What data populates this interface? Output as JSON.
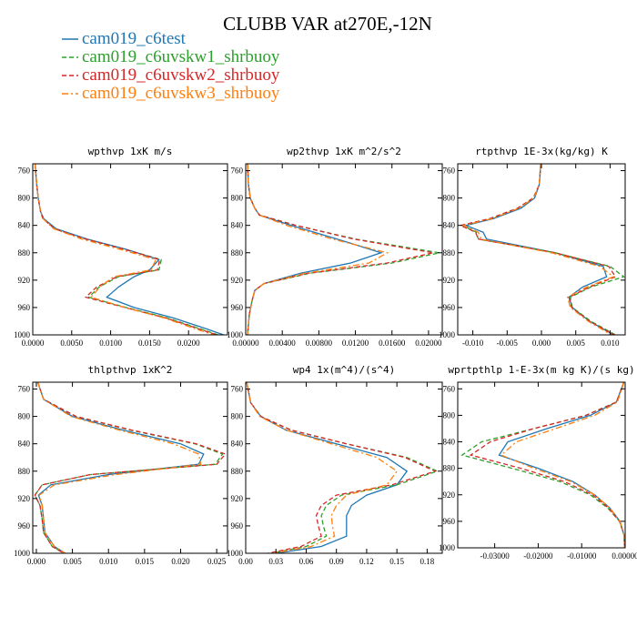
{
  "figure": {
    "title": "CLUBB VAR at270E,-12N",
    "legend": [
      {
        "label": "cam019_c6test",
        "color": "#1f77b4",
        "dash": "solid"
      },
      {
        "label": "cam019_c6uvskw1_shrbuoy",
        "color": "#2ca02c",
        "dash": "dashed"
      },
      {
        "label": "cam019_c6uvskw2_shrbuoy",
        "color": "#d62728",
        "dash": "dashed"
      },
      {
        "label": "cam019_c6uvskw3_shrbuoy",
        "color": "#ff7f0e",
        "dash": "dashdot"
      }
    ]
  },
  "chart_data": [
    {
      "type": "line",
      "title": "wpthvp  1xK m/s",
      "xlim": [
        0,
        0.025
      ],
      "ylim": [
        1000,
        750
      ],
      "xticks": [
        0,
        0.005,
        0.01,
        0.015,
        0.02
      ],
      "xtick_labels": [
        "0.0000",
        "0.0050",
        "0.0100",
        "0.0150",
        "0.0200"
      ],
      "yticks": [
        760,
        800,
        840,
        880,
        920,
        960,
        1000
      ],
      "y": [
        750,
        780,
        800,
        820,
        830,
        845,
        860,
        875,
        890,
        905,
        915,
        930,
        945,
        960,
        975,
        990,
        1000
      ],
      "series": [
        {
          "name": "cam019_c6test",
          "x": [
            0.0003,
            0.0005,
            0.0007,
            0.001,
            0.0014,
            0.003,
            0.007,
            0.012,
            0.0162,
            0.015,
            0.013,
            0.011,
            0.0095,
            0.013,
            0.018,
            0.022,
            0.0245
          ]
        },
        {
          "name": "cam019_c6uvskw1_shrbuoy",
          "x": [
            0.0003,
            0.0005,
            0.0007,
            0.001,
            0.0013,
            0.0028,
            0.0068,
            0.0118,
            0.0165,
            0.0162,
            0.011,
            0.0085,
            0.0072,
            0.012,
            0.0172,
            0.0212,
            0.0238
          ]
        },
        {
          "name": "cam019_c6uvskw2_shrbuoy",
          "x": [
            0.0003,
            0.0005,
            0.0007,
            0.001,
            0.0013,
            0.0028,
            0.0068,
            0.0118,
            0.0163,
            0.016,
            0.0108,
            0.0082,
            0.0068,
            0.0118,
            0.017,
            0.021,
            0.0236
          ]
        },
        {
          "name": "cam019_c6uvskw3_shrbuoy",
          "x": [
            0.0003,
            0.0005,
            0.0007,
            0.001,
            0.0013,
            0.0027,
            0.0063,
            0.0112,
            0.0158,
            0.0152,
            0.0104,
            0.0086,
            0.0075,
            0.0118,
            0.0168,
            0.0206,
            0.0232
          ]
        }
      ]
    },
    {
      "type": "line",
      "title": "wp2thvp  1xK m^2/s^2",
      "xlim": [
        0,
        0.0215
      ],
      "ylim": [
        1000,
        750
      ],
      "xticks": [
        0,
        0.004,
        0.008,
        0.012,
        0.016,
        0.02
      ],
      "xtick_labels": [
        "0.00000",
        "0.00400",
        "0.00800",
        "0.01200",
        "0.01600",
        "0.02000"
      ],
      "yticks": [
        760,
        800,
        840,
        880,
        920,
        960,
        1000
      ],
      "y": [
        750,
        780,
        800,
        815,
        825,
        840,
        860,
        880,
        895,
        910,
        925,
        935,
        950,
        970,
        1000
      ],
      "series": [
        {
          "name": "cam019_c6test",
          "x": [
            0.0002,
            0.0003,
            0.0005,
            0.001,
            0.0015,
            0.005,
            0.01,
            0.0148,
            0.0115,
            0.006,
            0.002,
            0.001,
            0.0007,
            0.0004,
            0.0002
          ]
        },
        {
          "name": "cam019_c6uvskw1_shrbuoy",
          "x": [
            0.0002,
            0.0003,
            0.0005,
            0.001,
            0.0015,
            0.0055,
            0.012,
            0.0212,
            0.016,
            0.007,
            0.002,
            0.001,
            0.0007,
            0.0004,
            0.0002
          ]
        },
        {
          "name": "cam019_c6uvskw2_shrbuoy",
          "x": [
            0.0002,
            0.0003,
            0.0005,
            0.001,
            0.0015,
            0.0055,
            0.0118,
            0.0205,
            0.0155,
            0.0068,
            0.002,
            0.001,
            0.0007,
            0.0004,
            0.0002
          ]
        },
        {
          "name": "cam019_c6uvskw3_shrbuoy",
          "x": [
            0.0002,
            0.0003,
            0.0005,
            0.001,
            0.0015,
            0.0045,
            0.0095,
            0.0155,
            0.0135,
            0.0065,
            0.002,
            0.001,
            0.0007,
            0.0004,
            0.0002
          ]
        }
      ]
    },
    {
      "type": "line",
      "title": "rtpthvp  1E-3x(kg/kg) K",
      "xlim": [
        -0.0122,
        0.0122
      ],
      "ylim": [
        1000,
        750
      ],
      "xticks": [
        -0.01,
        -0.005,
        0,
        0.005,
        0.01
      ],
      "xtick_labels": [
        "-0.010",
        "-0.005",
        "0.000",
        "0.005",
        "0.010"
      ],
      "yticks": [
        760,
        800,
        840,
        880,
        920,
        960,
        1000
      ],
      "y": [
        750,
        780,
        800,
        815,
        830,
        840,
        850,
        860,
        880,
        900,
        915,
        930,
        945,
        960,
        980,
        1000
      ],
      "series": [
        {
          "name": "cam019_c6test",
          "x": [
            -0.0001,
            -0.0003,
            -0.001,
            -0.003,
            -0.007,
            -0.011,
            -0.0085,
            -0.008,
            0.002,
            0.009,
            0.0095,
            0.006,
            0.004,
            0.0045,
            0.007,
            0.0105
          ]
        },
        {
          "name": "cam019_c6uvskw1_shrbuoy",
          "x": [
            -0.0001,
            -0.0003,
            -0.0012,
            -0.0035,
            -0.0075,
            -0.0115,
            -0.0095,
            -0.0092,
            0.002,
            0.01,
            0.012,
            0.0072,
            0.0042,
            0.0045,
            0.0072,
            0.0108
          ]
        },
        {
          "name": "cam019_c6uvskw2_shrbuoy",
          "x": [
            -0.0001,
            -0.0003,
            -0.0012,
            -0.0035,
            -0.0075,
            -0.0118,
            -0.0096,
            -0.0092,
            0.002,
            0.0098,
            0.0108,
            0.007,
            0.004,
            0.0044,
            0.007,
            0.0106
          ]
        },
        {
          "name": "cam019_c6uvskw3_shrbuoy",
          "x": [
            -0.0001,
            -0.0003,
            -0.0011,
            -0.0033,
            -0.0072,
            -0.0113,
            -0.0092,
            -0.0088,
            0.0015,
            0.0085,
            0.0105,
            0.0066,
            0.0038,
            0.0042,
            0.0068,
            0.0102
          ]
        }
      ]
    },
    {
      "type": "line",
      "title": "thlpthvp  1xK^2",
      "xlim": [
        -0.0005,
        0.0265
      ],
      "ylim": [
        1000,
        750
      ],
      "xticks": [
        0,
        0.005,
        0.01,
        0.015,
        0.02,
        0.025
      ],
      "xtick_labels": [
        "0.000",
        "0.005",
        "0.010",
        "0.015",
        "0.020",
        "0.025"
      ],
      "yticks": [
        760,
        800,
        840,
        880,
        920,
        960,
        1000
      ],
      "y": [
        750,
        775,
        800,
        820,
        840,
        855,
        870,
        885,
        900,
        915,
        930,
        950,
        970,
        990,
        1000
      ],
      "series": [
        {
          "name": "cam019_c6test",
          "x": [
            0.0002,
            0.001,
            0.005,
            0.012,
            0.02,
            0.0232,
            0.0225,
            0.01,
            0.002,
            0.0003,
            0.0008,
            0.001,
            0.0012,
            0.0025,
            0.004
          ]
        },
        {
          "name": "cam019_c6uvskw1_shrbuoy",
          "x": [
            0.0002,
            0.001,
            0.0055,
            0.013,
            0.022,
            0.0258,
            0.0248,
            0.0075,
            0.0008,
            -0.0002,
            0.0005,
            0.0008,
            0.001,
            0.0022,
            0.0038
          ]
        },
        {
          "name": "cam019_c6uvskw2_shrbuoy",
          "x": [
            0.0002,
            0.001,
            0.0055,
            0.0132,
            0.0222,
            0.0262,
            0.025,
            0.0075,
            0.0008,
            -0.0002,
            0.0005,
            0.0008,
            0.001,
            0.0022,
            0.0038
          ]
        },
        {
          "name": "cam019_c6uvskw3_shrbuoy",
          "x": [
            0.0002,
            0.001,
            0.0048,
            0.0115,
            0.019,
            0.0225,
            0.0228,
            0.011,
            0.0025,
            0.0004,
            0.0008,
            0.001,
            0.0012,
            0.0025,
            0.004
          ]
        }
      ]
    },
    {
      "type": "line",
      "title": "wp4  1x(m^4)/(s^4)",
      "xlim": [
        0,
        0.195
      ],
      "ylim": [
        1000,
        750
      ],
      "xticks": [
        0,
        0.03,
        0.06,
        0.09,
        0.12,
        0.15,
        0.18
      ],
      "xtick_labels": [
        "0.00",
        "0.03",
        "0.06",
        "0.09",
        "0.12",
        "0.15",
        "0.18"
      ],
      "yticks": [
        760,
        800,
        840,
        880,
        920,
        960,
        1000
      ],
      "y": [
        750,
        780,
        800,
        820,
        840,
        860,
        880,
        900,
        915,
        930,
        945,
        960,
        975,
        990,
        1000
      ],
      "series": [
        {
          "name": "cam019_c6test",
          "x": [
            0.001,
            0.005,
            0.015,
            0.04,
            0.09,
            0.14,
            0.16,
            0.15,
            0.12,
            0.105,
            0.1,
            0.1,
            0.1,
            0.075,
            0.03
          ]
        },
        {
          "name": "cam019_c6uvskw1_shrbuoy",
          "x": [
            0.001,
            0.005,
            0.015,
            0.045,
            0.1,
            0.16,
            0.19,
            0.15,
            0.095,
            0.08,
            0.075,
            0.077,
            0.08,
            0.06,
            0.025
          ]
        },
        {
          "name": "cam019_c6uvskw2_shrbuoy",
          "x": [
            0.001,
            0.005,
            0.015,
            0.045,
            0.1,
            0.158,
            0.188,
            0.145,
            0.09,
            0.075,
            0.07,
            0.072,
            0.075,
            0.055,
            0.022
          ]
        },
        {
          "name": "cam019_c6uvskw3_shrbuoy",
          "x": [
            0.001,
            0.005,
            0.014,
            0.04,
            0.085,
            0.13,
            0.15,
            0.14,
            0.1,
            0.09,
            0.085,
            0.086,
            0.088,
            0.065,
            0.027
          ]
        }
      ]
    },
    {
      "type": "line",
      "title": "wprtpthlp  1-E-3x(m kg K)/(s kg)",
      "xlim": [
        -0.0385,
        0
      ],
      "ylim": [
        1000,
        750
      ],
      "xticks": [
        -0.03,
        -0.02,
        -0.01,
        0
      ],
      "xtick_labels": [
        "-0.03000",
        "-0.02000",
        "-0.01000",
        "0.00000"
      ],
      "yticks": [
        760,
        800,
        840,
        880,
        920,
        960,
        1000
      ],
      "y": [
        750,
        780,
        800,
        820,
        840,
        860,
        880,
        900,
        920,
        940,
        960,
        980,
        1000
      ],
      "series": [
        {
          "name": "cam019_c6test",
          "x": [
            -0.0003,
            -0.002,
            -0.008,
            -0.018,
            -0.027,
            -0.029,
            -0.02,
            -0.012,
            -0.007,
            -0.0035,
            -0.0012,
            -0.0003,
            -0.0001
          ]
        },
        {
          "name": "cam019_c6uvskw1_shrbuoy",
          "x": [
            -0.0003,
            -0.002,
            -0.009,
            -0.021,
            -0.033,
            -0.0375,
            -0.026,
            -0.015,
            -0.008,
            -0.004,
            -0.0013,
            -0.0003,
            -0.0001
          ]
        },
        {
          "name": "cam019_c6uvskw2_shrbuoy",
          "x": [
            -0.0003,
            -0.002,
            -0.009,
            -0.021,
            -0.031,
            -0.0355,
            -0.024,
            -0.014,
            -0.0075,
            -0.0038,
            -0.0013,
            -0.0003,
            -0.0001
          ]
        },
        {
          "name": "cam019_c6uvskw3_shrbuoy",
          "x": [
            -0.0003,
            -0.0018,
            -0.007,
            -0.016,
            -0.025,
            -0.0285,
            -0.021,
            -0.0125,
            -0.007,
            -0.0035,
            -0.0012,
            -0.0003,
            -0.0001
          ]
        }
      ]
    }
  ]
}
